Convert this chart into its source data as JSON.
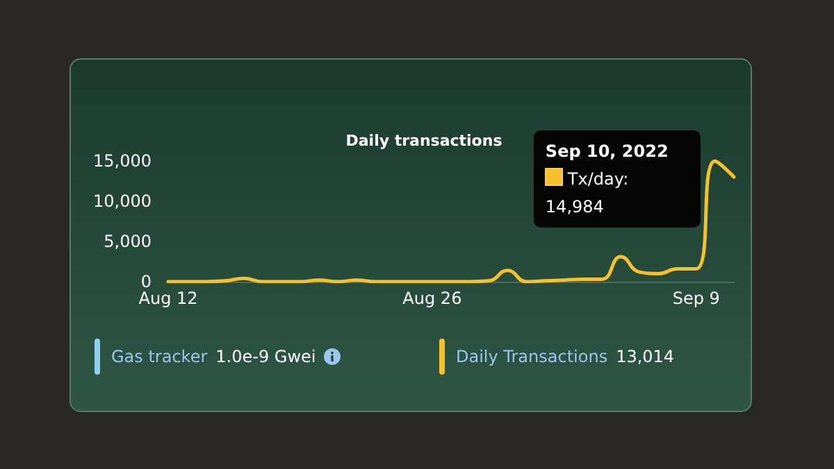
{
  "chart_data": {
    "type": "line",
    "title": "Daily transactions",
    "x": [
      "2022-08-12",
      "2022-08-13",
      "2022-08-14",
      "2022-08-15",
      "2022-08-16",
      "2022-08-17",
      "2022-08-18",
      "2022-08-19",
      "2022-08-20",
      "2022-08-21",
      "2022-08-22",
      "2022-08-23",
      "2022-08-24",
      "2022-08-25",
      "2022-08-26",
      "2022-08-27",
      "2022-08-28",
      "2022-08-29",
      "2022-08-30",
      "2022-08-31",
      "2022-09-01",
      "2022-09-02",
      "2022-09-03",
      "2022-09-04",
      "2022-09-05",
      "2022-09-06",
      "2022-09-07",
      "2022-09-08",
      "2022-09-09",
      "2022-09-10",
      "2022-09-11"
    ],
    "series": [
      {
        "color": "#f6c12c",
        "values": [
          0,
          0,
          0,
          100,
          400,
          0,
          0,
          0,
          200,
          0,
          200,
          0,
          0,
          0,
          0,
          0,
          0,
          100,
          1400,
          0,
          100,
          200,
          300,
          300,
          3100,
          1200,
          1000,
          1600,
          1600,
          14984,
          13014
        ]
      }
    ],
    "xlim": [
      "2022-08-12",
      "2022-09-11"
    ],
    "xticks": [
      {
        "value": "2022-08-12",
        "label": "Aug 12"
      },
      {
        "value": "2022-08-26",
        "label": "Aug 26"
      },
      {
        "value": "2022-09-09",
        "label": "Sep 9"
      }
    ],
    "ylim": [
      0,
      15000
    ],
    "yticks": [
      {
        "value": 0,
        "label": "0"
      },
      {
        "value": 5000,
        "label": "5,000"
      },
      {
        "value": 10000,
        "label": "10,000"
      },
      {
        "value": 15000,
        "label": "15,000"
      }
    ],
    "grid": false,
    "marker": "none",
    "line_style": "solid",
    "annotations": [
      {
        "text": "Sep 10, 2022",
        "x": "2022-09-10",
        "y": 14984
      },
      "Tx/day: 14,984",
      "Gas tracker",
      "1.0e-9 Gwei",
      "Daily Transactions",
      "13,014"
    ]
  }
}
